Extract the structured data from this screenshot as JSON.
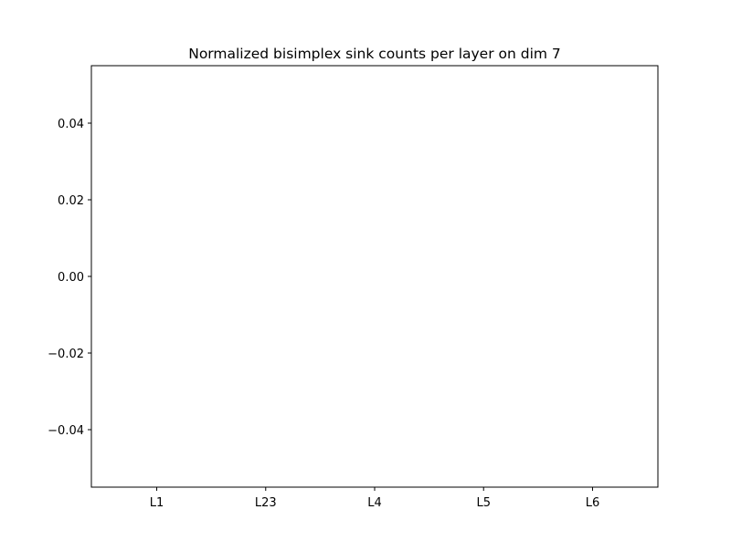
{
  "chart_data": {
    "type": "bar",
    "title": "Normalized bisimplex sink counts per layer on dim 7",
    "xlabel": "",
    "ylabel": "",
    "categories": [
      "L1",
      "L23",
      "L4",
      "L5",
      "L6"
    ],
    "values": [
      0,
      0,
      0,
      0,
      0
    ],
    "ylim": [
      -0.055,
      0.055
    ],
    "yticks": [
      0.04,
      0.02,
      0.0,
      -0.02,
      -0.04
    ],
    "ytick_labels": [
      "0.04",
      "0.02",
      "0.00",
      "−0.02",
      "−0.04"
    ],
    "grid": false,
    "legend": "none"
  }
}
